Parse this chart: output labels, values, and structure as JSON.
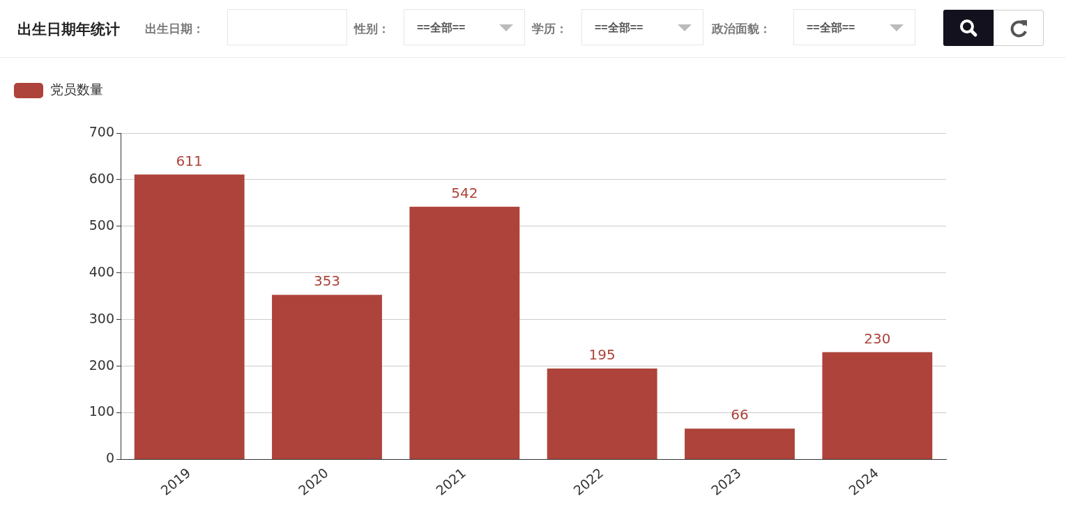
{
  "chart_data": {
    "type": "bar",
    "title": "出生日期年统计",
    "annotations": [
      "出生日期：",
      "性别：",
      "==全部==",
      "学历：",
      "==全部==",
      "政治面貌：",
      "==全部=="
    ],
    "categories": [
      "2019",
      "2020",
      "2021",
      "2022",
      "2023",
      "2024"
    ],
    "series": [
      {
        "name": "党员数量",
        "color": "#ad433a",
        "values": [
          611,
          353,
          542,
          195,
          66,
          230
        ]
      }
    ],
    "ylim": [
      0,
      700
    ],
    "yticks": [
      0,
      100,
      200,
      300,
      400,
      500,
      600,
      700
    ],
    "grid": "y",
    "legend": "top left",
    "data_labels": true
  }
}
